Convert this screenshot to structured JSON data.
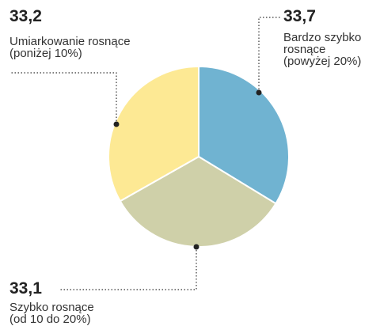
{
  "chart_data": {
    "type": "pie",
    "categories": [
      "Bardzo szybko rosnące (powyżej 20%)",
      "Szybko rosnące (od 10 do 20%)",
      "Umiarkowanie rosnące (poniżej 10%)"
    ],
    "values": [
      33.7,
      33.1,
      33.2
    ],
    "value_labels": [
      "33,7",
      "33,1",
      "33,2"
    ],
    "colors": [
      "#70b3d1",
      "#cfd0a9",
      "#fde994"
    ]
  }
}
